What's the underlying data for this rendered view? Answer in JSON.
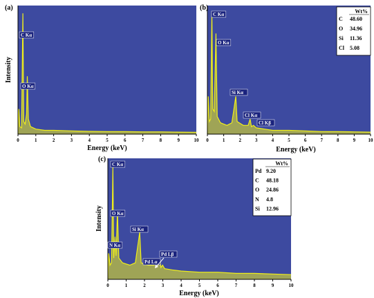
{
  "colors": {
    "plot_bg": "#3d4aa0",
    "spectrum": "#f0ef1a",
    "label_bg": "#1a237e"
  },
  "chart_data": [
    {
      "type": "line",
      "panel_label": "(a)",
      "xlabel": "Energy (keV)",
      "ylabel": "Intensity",
      "xlim": [
        0,
        10
      ],
      "ylim": [
        0,
        100
      ],
      "x_ticks": [
        "0",
        "1",
        "2",
        "3",
        "4",
        "5",
        "6",
        "7",
        "8",
        "9",
        "10"
      ],
      "spectrum": [
        [
          0,
          0
        ],
        [
          0.05,
          20
        ],
        [
          0.1,
          6
        ],
        [
          0.2,
          5
        ],
        [
          0.277,
          96
        ],
        [
          0.32,
          10
        ],
        [
          0.4,
          8
        ],
        [
          0.48,
          16
        ],
        [
          0.525,
          46
        ],
        [
          0.58,
          12
        ],
        [
          0.7,
          6
        ],
        [
          1,
          4
        ],
        [
          1.5,
          3
        ],
        [
          2,
          3
        ],
        [
          3,
          2.5
        ],
        [
          4,
          2.2
        ],
        [
          5,
          2
        ],
        [
          6,
          2
        ],
        [
          7,
          1.8
        ],
        [
          8,
          1.8
        ],
        [
          9,
          1.6
        ],
        [
          10,
          1.5
        ]
      ],
      "peaks": [
        {
          "label": "C Kα",
          "energy": 0.277,
          "height": 96
        },
        {
          "label": "O Kα",
          "energy": 0.525,
          "height": 46
        }
      ],
      "weight_table": null
    },
    {
      "type": "line",
      "panel_label": "(b)",
      "xlabel": "Energy (keV)",
      "ylabel": "",
      "xlim": [
        0,
        10
      ],
      "ylim": [
        0,
        100
      ],
      "x_ticks": [
        "0",
        "1",
        "2",
        "3",
        "4",
        "5",
        "6",
        "7",
        "8",
        "9",
        "10"
      ],
      "spectrum": [
        [
          0,
          0
        ],
        [
          0.05,
          30
        ],
        [
          0.12,
          10
        ],
        [
          0.2,
          12
        ],
        [
          0.277,
          97
        ],
        [
          0.33,
          20
        ],
        [
          0.42,
          18
        ],
        [
          0.525,
          80
        ],
        [
          0.6,
          14
        ],
        [
          0.8,
          9
        ],
        [
          1.2,
          7
        ],
        [
          1.5,
          9
        ],
        [
          1.74,
          30
        ],
        [
          1.82,
          10
        ],
        [
          2.2,
          7
        ],
        [
          2.5,
          7
        ],
        [
          2.62,
          12
        ],
        [
          2.7,
          6
        ],
        [
          2.82,
          7
        ],
        [
          3.0,
          5
        ],
        [
          3.5,
          4
        ],
        [
          4,
          3
        ],
        [
          5,
          3
        ],
        [
          6,
          2.5
        ],
        [
          7,
          2
        ],
        [
          8,
          2
        ],
        [
          9,
          1.8
        ],
        [
          10,
          1.6
        ]
      ],
      "peaks": [
        {
          "label": "C Kα",
          "energy": 0.277,
          "height": 97
        },
        {
          "label": "O Kα",
          "energy": 0.525,
          "height": 80
        },
        {
          "label": "Si Kα",
          "energy": 1.74,
          "height": 30
        },
        {
          "label": "Cl Kα",
          "energy": 2.62,
          "height": 12
        },
        {
          "label": "Cl Kβ",
          "energy": 2.82,
          "height": 7
        }
      ],
      "weight_table": {
        "header": "Wt%",
        "rows": [
          [
            "C",
            "48.60"
          ],
          [
            "O",
            "34.96"
          ],
          [
            "Si",
            "11.36"
          ],
          [
            "Cl",
            "5.08"
          ]
        ]
      }
    },
    {
      "type": "line",
      "panel_label": "(c)",
      "xlabel": "Energy (keV)",
      "ylabel": "Intensity",
      "xlim": [
        0,
        10
      ],
      "ylim": [
        0,
        100
      ],
      "x_ticks": [
        "0",
        "1",
        "2",
        "3",
        "4",
        "5",
        "6",
        "7",
        "8",
        "9",
        "10"
      ],
      "spectrum": [
        [
          0,
          0
        ],
        [
          0.05,
          22
        ],
        [
          0.12,
          12
        ],
        [
          0.2,
          14
        ],
        [
          0.277,
          95
        ],
        [
          0.32,
          18
        ],
        [
          0.392,
          36
        ],
        [
          0.45,
          20
        ],
        [
          0.525,
          58
        ],
        [
          0.6,
          18
        ],
        [
          0.8,
          14
        ],
        [
          1.2,
          12
        ],
        [
          1.5,
          14
        ],
        [
          1.74,
          40
        ],
        [
          1.82,
          14
        ],
        [
          2.2,
          12
        ],
        [
          2.5,
          12
        ],
        [
          2.84,
          16
        ],
        [
          2.9,
          10
        ],
        [
          2.99,
          12
        ],
        [
          3.1,
          9
        ],
        [
          3.5,
          8
        ],
        [
          4,
          7
        ],
        [
          5,
          6
        ],
        [
          6,
          6
        ],
        [
          7,
          5
        ],
        [
          8,
          5
        ],
        [
          9,
          4.5
        ],
        [
          10,
          4
        ]
      ],
      "peaks": [
        {
          "label": "C Kα",
          "energy": 0.277,
          "height": 95
        },
        {
          "label": "N Kα",
          "energy": 0.392,
          "height": 36
        },
        {
          "label": "O Kα",
          "energy": 0.525,
          "height": 58
        },
        {
          "label": "Si Kα",
          "energy": 1.74,
          "height": 40
        },
        {
          "label": "Pd Lα",
          "energy": 2.84,
          "height": 16
        },
        {
          "label": "Pd Lβ",
          "energy": 2.99,
          "height": 12
        }
      ],
      "weight_table": {
        "header": "Wt%",
        "rows": [
          [
            "Pd",
            "9.20"
          ],
          [
            "C",
            "48.18"
          ],
          [
            "O",
            "24.86"
          ],
          [
            "N",
            "4.8"
          ],
          [
            "Si",
            "12.96"
          ]
        ]
      }
    }
  ]
}
